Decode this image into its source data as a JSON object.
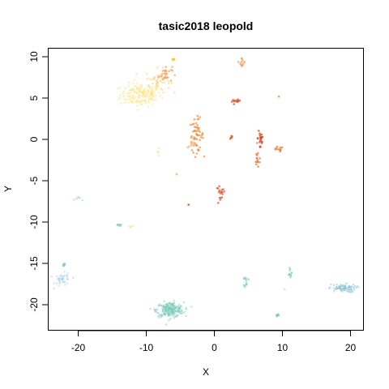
{
  "chart_data": {
    "type": "scatter",
    "title": "tasic2018 leopold",
    "xlabel": "X",
    "ylabel": "Y",
    "xlim": [
      -24,
      22
    ],
    "ylim": [
      -22.5,
      11
    ],
    "xticks": [
      -20,
      -10,
      0,
      10,
      20
    ],
    "yticks": [
      -20,
      -15,
      -10,
      -5,
      0,
      5,
      10
    ],
    "xtick_labels": [
      "-20",
      "-10",
      "0",
      "10",
      "20"
    ],
    "ytick_labels": [
      "-20",
      "-15",
      "-10",
      "-5",
      "0",
      "5",
      "10"
    ],
    "grid": false,
    "legend": "none",
    "clusters": [
      {
        "color": "#fde68a",
        "cx": -10.8,
        "cy": 5.4,
        "sx": 1.5,
        "sy": 0.7,
        "n": 160,
        "opacity": 0.55
      },
      {
        "color": "#fcd48a",
        "cx": -8.3,
        "cy": 7.1,
        "sx": 0.9,
        "sy": 0.7,
        "n": 50,
        "opacity": 0.6
      },
      {
        "color": "#f4a460",
        "cx": -7.2,
        "cy": 7.9,
        "sx": 0.5,
        "sy": 0.5,
        "n": 30,
        "opacity": 0.7
      },
      {
        "color": "#fbbf24",
        "cx": -6.0,
        "cy": 9.8,
        "sx": 0.1,
        "sy": 0.1,
        "n": 4,
        "opacity": 0.8
      },
      {
        "color": "#f59e5b",
        "cx": 4.1,
        "cy": 9.3,
        "sx": 0.2,
        "sy": 0.3,
        "n": 12,
        "opacity": 0.75
      },
      {
        "color": "#d9532f",
        "cx": 3.2,
        "cy": 4.6,
        "sx": 0.3,
        "sy": 0.1,
        "n": 12,
        "opacity": 0.8
      },
      {
        "color": "#f0a060",
        "cx": 9.5,
        "cy": 5.2,
        "sx": 0.05,
        "sy": 0.05,
        "n": 2,
        "opacity": 0.8
      },
      {
        "color": "#f08a3c",
        "cx": -2.6,
        "cy": 0.5,
        "sx": 0.5,
        "sy": 1.0,
        "n": 55,
        "opacity": 0.7
      },
      {
        "color": "#f6b26b",
        "cx": -3.3,
        "cy": -0.6,
        "sx": 0.3,
        "sy": 0.2,
        "n": 10,
        "opacity": 0.7
      },
      {
        "color": "#e06030",
        "cx": 2.5,
        "cy": 0.2,
        "sx": 0.1,
        "sy": 0.2,
        "n": 6,
        "opacity": 0.8
      },
      {
        "color": "#d14a2c",
        "cx": 6.8,
        "cy": 0.2,
        "sx": 0.2,
        "sy": 1.0,
        "n": 22,
        "opacity": 0.75
      },
      {
        "color": "#e8773a",
        "cx": 6.4,
        "cy": -2.4,
        "sx": 0.25,
        "sy": 0.6,
        "n": 14,
        "opacity": 0.75
      },
      {
        "color": "#e8773a",
        "cx": 9.3,
        "cy": -1.2,
        "sx": 0.4,
        "sy": 0.15,
        "n": 10,
        "opacity": 0.75
      },
      {
        "color": "#e05a30",
        "cx": 0.9,
        "cy": -6.8,
        "sx": 0.35,
        "sy": 0.6,
        "n": 18,
        "opacity": 0.75
      },
      {
        "color": "#f6c08a",
        "cx": -5.5,
        "cy": -4.2,
        "sx": 0.05,
        "sy": 0.05,
        "n": 2,
        "opacity": 0.8
      },
      {
        "color": "#e07030",
        "cx": -3.8,
        "cy": -7.9,
        "sx": 0.05,
        "sy": 0.05,
        "n": 2,
        "opacity": 0.8
      },
      {
        "color": "#f9e0a0",
        "cx": -8.3,
        "cy": -1.8,
        "sx": 0.1,
        "sy": 0.5,
        "n": 5,
        "opacity": 0.6
      },
      {
        "color": "#a8d8c8",
        "cx": -19.8,
        "cy": -7.2,
        "sx": 0.3,
        "sy": 0.1,
        "n": 6,
        "opacity": 0.6
      },
      {
        "color": "#88c8b0",
        "cx": -14.0,
        "cy": -10.3,
        "sx": 0.25,
        "sy": 0.1,
        "n": 6,
        "opacity": 0.7
      },
      {
        "color": "#f9e79f",
        "cx": -12.3,
        "cy": -10.6,
        "sx": 0.25,
        "sy": 0.1,
        "n": 5,
        "opacity": 0.7
      },
      {
        "color": "#a6cfe8",
        "cx": -22.2,
        "cy": -17.0,
        "sx": 0.6,
        "sy": 0.4,
        "n": 40,
        "opacity": 0.45
      },
      {
        "color": "#7fb8d8",
        "cx": -22.1,
        "cy": -15.0,
        "sx": 0.1,
        "sy": 0.2,
        "n": 6,
        "opacity": 0.6
      },
      {
        "color": "#7fcdbb",
        "cx": -6.5,
        "cy": -20.6,
        "sx": 1.0,
        "sy": 0.45,
        "n": 230,
        "opacity": 0.45
      },
      {
        "color": "#7fcdbb",
        "cx": 4.7,
        "cy": -17.2,
        "sx": 0.15,
        "sy": 0.35,
        "n": 14,
        "opacity": 0.6
      },
      {
        "color": "#7fcdbb",
        "cx": 11.1,
        "cy": -16.0,
        "sx": 0.15,
        "sy": 0.35,
        "n": 12,
        "opacity": 0.6
      },
      {
        "color": "#88c0d0",
        "cx": 18.8,
        "cy": -18.0,
        "sx": 1.0,
        "sy": 0.25,
        "n": 80,
        "opacity": 0.45
      },
      {
        "color": "#66c2a4",
        "cx": 9.3,
        "cy": -21.3,
        "sx": 0.1,
        "sy": 0.1,
        "n": 4,
        "opacity": 0.7
      },
      {
        "color": "#c8e6dc",
        "cx": 10.3,
        "cy": -18.2,
        "sx": 0.1,
        "sy": 0.1,
        "n": 2,
        "opacity": 0.6
      }
    ]
  }
}
